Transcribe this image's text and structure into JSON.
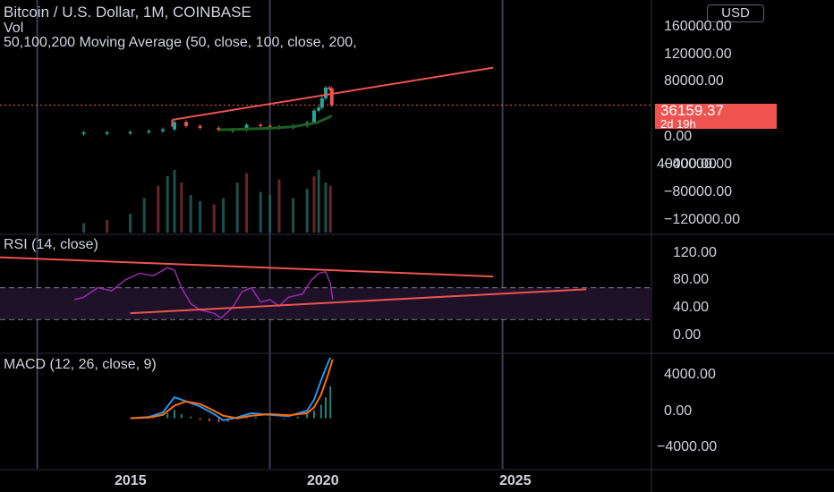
{
  "header": {
    "symbol_line": "Bitcoin / U.S. Dollar, 1M, COINBASE",
    "vol_label": "Vol",
    "ma_label": "50,100,200 Moving Average (50, close, 100, close, 200,",
    "currency": "USD"
  },
  "price_tag": {
    "price": "36159.37",
    "countdown": "2d 19h"
  },
  "panes": {
    "rsi_label": "RSI (14, close)",
    "macd_label": "MACD (12, 26, close, 9)"
  },
  "axes": {
    "price_ticks": [
      "160000.00",
      "120000.00",
      "80000.00",
      "40000.00",
      "0.00",
      "−40000.00",
      "−80000.00",
      "−120000.00"
    ],
    "rsi_ticks": [
      "120.00",
      "80.00",
      "40.00",
      "0.00"
    ],
    "macd_ticks": [
      "4000.00",
      "0.00",
      "−4000.00"
    ],
    "year_ticks": [
      "2015",
      "2020",
      "2025"
    ]
  },
  "colors": {
    "background": "#000000",
    "up": "#26a69a",
    "down": "#ef5350",
    "trendline": "#ef5350",
    "rsi": "#9c27b0",
    "rsi_band": "#1e1229",
    "macd": "#2196f3",
    "signal": "#ff6d00",
    "ma200": "#1b5e20",
    "grid_vertical": "#3a3d55",
    "separator": "#2a2e39"
  },
  "chart_data": [
    {
      "type": "candlestick",
      "title": "Bitcoin / U.S. Dollar, 1M, COINBASE",
      "ylim": [
        -130000,
        165000
      ],
      "x_ticks": [
        2015,
        2020,
        2025
      ],
      "xlim": [
        2014.2,
        2028.2
      ],
      "close_series": [
        [
          2016.0,
          400
        ],
        [
          2016.5,
          650
        ],
        [
          2017.0,
          1000
        ],
        [
          2017.4,
          2400
        ],
        [
          2017.7,
          4500
        ],
        [
          2017.95,
          14000
        ],
        [
          2018.2,
          9000
        ],
        [
          2018.5,
          6500
        ],
        [
          2018.9,
          3800
        ],
        [
          2019.2,
          4100
        ],
        [
          2019.5,
          10500
        ],
        [
          2019.8,
          9000
        ],
        [
          2020.0,
          8000
        ],
        [
          2020.2,
          6500
        ],
        [
          2020.5,
          9200
        ],
        [
          2020.8,
          13500
        ],
        [
          2020.95,
          29000
        ],
        [
          2021.05,
          33000
        ],
        [
          2021.12,
          45000
        ],
        [
          2021.2,
          59000
        ],
        [
          2021.28,
          58000
        ],
        [
          2021.33,
          36159
        ]
      ],
      "moving_average_200": [
        [
          2018.9,
          4000
        ],
        [
          2019.5,
          5000
        ],
        [
          2020.0,
          6000
        ],
        [
          2020.5,
          8000
        ],
        [
          2021.0,
          13000
        ],
        [
          2021.33,
          22000
        ]
      ],
      "trendlines": [
        {
          "from": [
            2017.9,
            17000
          ],
          "to": [
            2024.8,
            85000
          ]
        }
      ],
      "volume": {
        "x": [
          2016.0,
          2016.5,
          2017.0,
          2017.3,
          2017.6,
          2017.8,
          2017.95,
          2018.1,
          2018.3,
          2018.5,
          2018.8,
          2019.0,
          2019.3,
          2019.5,
          2019.8,
          2020.0,
          2020.2,
          2020.5,
          2020.8,
          2020.95,
          2021.05,
          2021.2,
          2021.3
        ],
        "values": [
          0.15,
          0.2,
          0.3,
          0.55,
          0.75,
          0.9,
          1.0,
          0.8,
          0.6,
          0.5,
          0.45,
          0.55,
          0.8,
          0.95,
          0.65,
          0.6,
          0.85,
          0.55,
          0.7,
          0.9,
          1.0,
          0.8,
          0.75
        ]
      },
      "last_price": 36159.37
    },
    {
      "type": "line",
      "title": "RSI (14, close)",
      "ylim": [
        -10,
        130
      ],
      "bands": [
        30,
        70
      ],
      "series": [
        {
          "values": [
            [
              2015.8,
              55
            ],
            [
              2016.0,
              58
            ],
            [
              2016.3,
              70
            ],
            [
              2016.6,
              66
            ],
            [
              2016.9,
              80
            ],
            [
              2017.2,
              88
            ],
            [
              2017.5,
              85
            ],
            [
              2017.8,
              95
            ],
            [
              2017.95,
              92
            ],
            [
              2018.1,
              70
            ],
            [
              2018.3,
              50
            ],
            [
              2018.5,
              42
            ],
            [
              2018.8,
              38
            ],
            [
              2018.95,
              32
            ],
            [
              2019.2,
              45
            ],
            [
              2019.4,
              65
            ],
            [
              2019.6,
              70
            ],
            [
              2019.8,
              52
            ],
            [
              2020.0,
              55
            ],
            [
              2020.2,
              47
            ],
            [
              2020.4,
              58
            ],
            [
              2020.7,
              62
            ],
            [
              2020.9,
              80
            ],
            [
              2021.05,
              88
            ],
            [
              2021.2,
              90
            ],
            [
              2021.3,
              75
            ],
            [
              2021.35,
              55
            ]
          ]
        }
      ],
      "trendlines": [
        {
          "from": [
            2014.2,
            108
          ],
          "to": [
            2024.8,
            84
          ]
        },
        {
          "from": [
            2017.0,
            38
          ],
          "to": [
            2026.8,
            68
          ]
        }
      ]
    },
    {
      "type": "line",
      "title": "MACD (12, 26, close, 9)",
      "ylim": [
        -6000,
        7500
      ],
      "series": [
        {
          "values": [
            [
              2017.0,
              0
            ],
            [
              2017.4,
              150
            ],
            [
              2017.7,
              700
            ],
            [
              2017.95,
              2500
            ],
            [
              2018.2,
              2000
            ],
            [
              2018.5,
              1400
            ],
            [
              2018.8,
              500
            ],
            [
              2019.0,
              -250
            ],
            [
              2019.3,
              100
            ],
            [
              2019.6,
              600
            ],
            [
              2020.0,
              400
            ],
            [
              2020.4,
              250
            ],
            [
              2020.8,
              900
            ],
            [
              2020.95,
              2200
            ],
            [
              2021.1,
              4500
            ],
            [
              2021.25,
              6600
            ],
            [
              2021.3,
              7200
            ]
          ]
        },
        {
          "values": [
            [
              2017.0,
              0
            ],
            [
              2017.4,
              80
            ],
            [
              2017.7,
              400
            ],
            [
              2017.95,
              1500
            ],
            [
              2018.2,
              2000
            ],
            [
              2018.5,
              1700
            ],
            [
              2018.8,
              900
            ],
            [
              2019.0,
              300
            ],
            [
              2019.3,
              0
            ],
            [
              2019.6,
              300
            ],
            [
              2020.0,
              500
            ],
            [
              2020.4,
              350
            ],
            [
              2020.8,
              600
            ],
            [
              2020.95,
              1300
            ],
            [
              2021.1,
              2800
            ],
            [
              2021.25,
              5200
            ],
            [
              2021.35,
              7000
            ]
          ]
        }
      ],
      "histogram": [
        [
          2017.2,
          100
        ],
        [
          2017.5,
          200
        ],
        [
          2017.8,
          600
        ],
        [
          2017.95,
          1000
        ],
        [
          2018.1,
          500
        ],
        [
          2018.3,
          200
        ],
        [
          2018.5,
          -200
        ],
        [
          2018.7,
          -350
        ],
        [
          2018.9,
          -500
        ],
        [
          2019.1,
          -400
        ],
        [
          2019.3,
          -100
        ],
        [
          2019.5,
          200
        ],
        [
          2019.7,
          150
        ],
        [
          2020.0,
          -100
        ],
        [
          2020.3,
          -100
        ],
        [
          2020.6,
          200
        ],
        [
          2020.8,
          500
        ],
        [
          2020.95,
          900
        ],
        [
          2021.1,
          1600
        ],
        [
          2021.2,
          2500
        ],
        [
          2021.3,
          3800
        ]
      ]
    }
  ]
}
